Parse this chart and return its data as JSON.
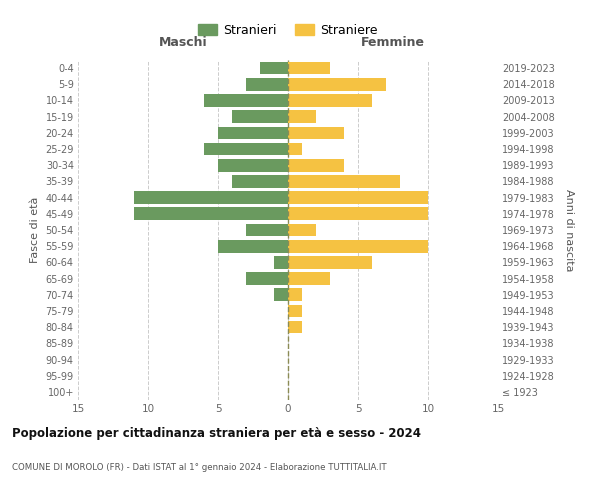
{
  "age_groups": [
    "100+",
    "95-99",
    "90-94",
    "85-89",
    "80-84",
    "75-79",
    "70-74",
    "65-69",
    "60-64",
    "55-59",
    "50-54",
    "45-49",
    "40-44",
    "35-39",
    "30-34",
    "25-29",
    "20-24",
    "15-19",
    "10-14",
    "5-9",
    "0-4"
  ],
  "birth_years": [
    "≤ 1923",
    "1924-1928",
    "1929-1933",
    "1934-1938",
    "1939-1943",
    "1944-1948",
    "1949-1953",
    "1954-1958",
    "1959-1963",
    "1964-1968",
    "1969-1973",
    "1974-1978",
    "1979-1983",
    "1984-1988",
    "1989-1993",
    "1994-1998",
    "1999-2003",
    "2004-2008",
    "2009-2013",
    "2014-2018",
    "2019-2023"
  ],
  "maschi": [
    0,
    0,
    0,
    0,
    0,
    0,
    1,
    3,
    1,
    5,
    3,
    11,
    11,
    4,
    5,
    6,
    5,
    4,
    6,
    3,
    2
  ],
  "femmine": [
    0,
    0,
    0,
    0,
    1,
    1,
    1,
    3,
    6,
    10,
    2,
    10,
    10,
    8,
    4,
    1,
    4,
    2,
    6,
    7,
    3
  ],
  "color_maschi": "#6a9a5f",
  "color_femmine": "#f5c242",
  "color_zero_line": "#8b8b55",
  "xlim": 15,
  "title": "Popolazione per cittadinanza straniera per età e sesso - 2024",
  "subtitle": "COMUNE DI MOROLO (FR) - Dati ISTAT al 1° gennaio 2024 - Elaborazione TUTTITALIA.IT",
  "xlabel_left": "Maschi",
  "xlabel_right": "Femmine",
  "ylabel_left": "Fasce di età",
  "ylabel_right": "Anni di nascita",
  "legend_maschi": "Stranieri",
  "legend_femmine": "Straniere",
  "background_color": "#ffffff",
  "grid_color": "#cccccc"
}
